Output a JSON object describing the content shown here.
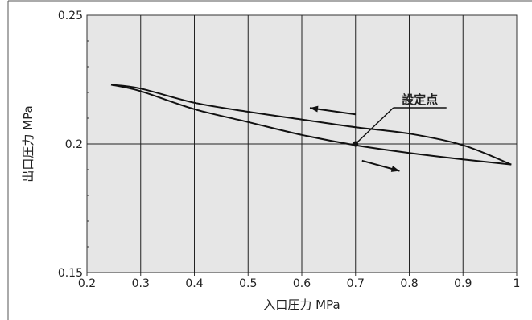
{
  "chart_data": {
    "type": "line",
    "xlabel": "入口圧力 MPa",
    "ylabel": "出口圧力 MPa",
    "xlim": [
      0.2,
      1.0
    ],
    "ylim": [
      0.15,
      0.25
    ],
    "x_ticks": [
      0.2,
      0.3,
      0.4,
      0.5,
      0.6,
      0.7,
      0.8,
      0.9,
      1.0
    ],
    "x_tick_labels": [
      "0.2",
      "0.3",
      "0.4",
      "0.5",
      "0.6",
      "0.7",
      "0.8",
      "0.9",
      "1"
    ],
    "y_ticks": [
      0.15,
      0.2,
      0.25
    ],
    "y_tick_labels": [
      "0.15",
      "0.2",
      "0.25"
    ],
    "grid": "vertical lines at each x tick; horizontal line at 0.2",
    "plot_background": "#e6e6e6",
    "line_color": "#111111",
    "series": [
      {
        "direction": "decreasing",
        "x": [
          0.99,
          0.9,
          0.8,
          0.7,
          0.6,
          0.5,
          0.4,
          0.3,
          0.245
        ],
        "y": [
          0.192,
          0.1995,
          0.204,
          0.2065,
          0.2095,
          0.2125,
          0.216,
          0.2215,
          0.223
        ]
      },
      {
        "direction": "increasing",
        "x": [
          0.245,
          0.3,
          0.4,
          0.5,
          0.6,
          0.7,
          0.8,
          0.9,
          0.99
        ],
        "y": [
          0.223,
          0.2205,
          0.2135,
          0.2085,
          0.2035,
          0.1995,
          0.1965,
          0.194,
          0.192
        ]
      }
    ],
    "annotations": [
      {
        "text": "設定点",
        "x": 0.7,
        "y": 0.2
      }
    ]
  }
}
